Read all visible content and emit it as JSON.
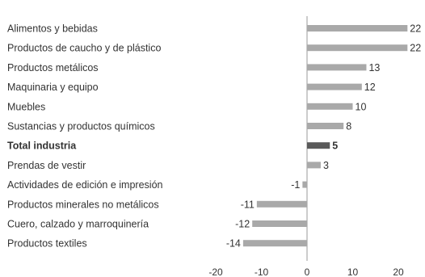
{
  "chart_data": {
    "type": "bar",
    "orientation": "horizontal",
    "title": "",
    "xlabel": "",
    "ylabel": "",
    "categories": [
      "Alimentos y bebidas",
      "Productos de caucho y de plástico",
      "Productos metálicos",
      "Maquinaria y equipo",
      "Muebles",
      "Sustancias y productos químicos",
      "Total industria",
      "Prendas de vestir",
      "Actividades de edición e impresión",
      "Productos minerales no metálicos",
      "Cuero, calzado y marroquinería",
      "Productos textiles"
    ],
    "values": [
      22,
      22,
      13,
      12,
      10,
      8,
      5,
      3,
      -1,
      -11,
      -12,
      -14
    ],
    "value_labels": [
      "22",
      "22",
      "13",
      "12",
      "10",
      "8",
      "5",
      "3",
      "-1",
      "-11",
      "-12",
      "-14"
    ],
    "highlight_index": 6,
    "xlim": [
      -20,
      25
    ],
    "xticks": [
      -20,
      -10,
      0,
      10,
      20
    ],
    "xtick_labels": [
      "-20",
      "-10",
      "0",
      "10",
      "20"
    ],
    "grid": false,
    "colors": {
      "bar": "#a9a9a9",
      "highlight": "#5a5a5a",
      "axis": "#9a9a9a",
      "text": "#333333"
    }
  }
}
